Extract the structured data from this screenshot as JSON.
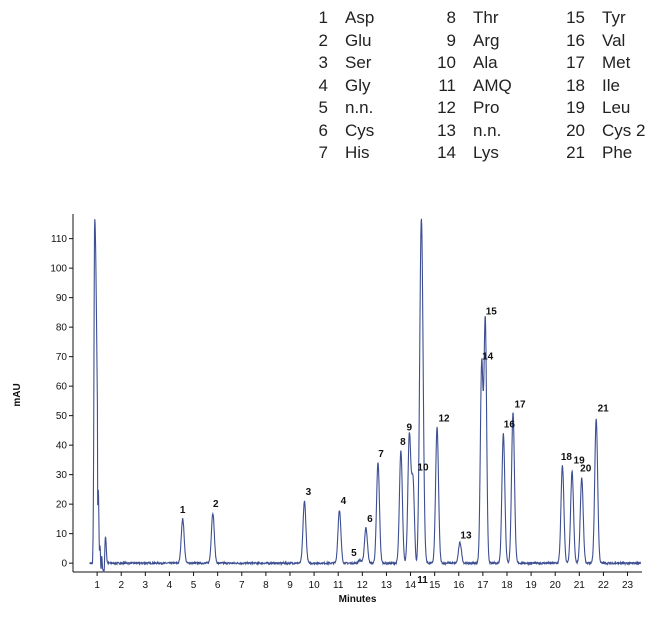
{
  "legend": [
    {
      "num": "1",
      "name": "Asp"
    },
    {
      "num": "2",
      "name": "Glu"
    },
    {
      "num": "3",
      "name": "Ser"
    },
    {
      "num": "4",
      "name": "Gly"
    },
    {
      "num": "5",
      "name": "n.n."
    },
    {
      "num": "6",
      "name": "Cys"
    },
    {
      "num": "7",
      "name": "His"
    },
    {
      "num": "8",
      "name": "Thr"
    },
    {
      "num": "9",
      "name": "Arg"
    },
    {
      "num": "10",
      "name": "Ala"
    },
    {
      "num": "11",
      "name": "AMQ"
    },
    {
      "num": "12",
      "name": "Pro"
    },
    {
      "num": "13",
      "name": "n.n."
    },
    {
      "num": "14",
      "name": "Lys"
    },
    {
      "num": "15",
      "name": "Tyr"
    },
    {
      "num": "16",
      "name": "Val"
    },
    {
      "num": "17",
      "name": "Met"
    },
    {
      "num": "18",
      "name": "Ile"
    },
    {
      "num": "19",
      "name": "Leu"
    },
    {
      "num": "20",
      "name": "Cys 2"
    },
    {
      "num": "21",
      "name": "Phe"
    }
  ],
  "chart_data": {
    "type": "line",
    "xlabel": "Minutes",
    "ylabel": "mAU",
    "xlim": [
      0,
      23.6
    ],
    "ylim": [
      -3,
      117
    ],
    "xticks": [
      "1",
      "2",
      "3",
      "4",
      "5",
      "6",
      "7",
      "8",
      "9",
      "10",
      "11",
      "12",
      "13",
      "14",
      "15",
      "16",
      "17",
      "18",
      "19",
      "20",
      "21",
      "22",
      "23"
    ],
    "yticks": [
      "0",
      "10",
      "20",
      "30",
      "40",
      "50",
      "60",
      "70",
      "80",
      "90",
      "100",
      "110"
    ],
    "grid": false,
    "line_color": "#3d4f91",
    "peaks": [
      {
        "label": "1",
        "x": 4.55,
        "y": 15
      },
      {
        "label": "2",
        "x": 5.8,
        "y": 17
      },
      {
        "label": "3",
        "x": 9.6,
        "y": 21
      },
      {
        "label": "4",
        "x": 11.05,
        "y": 18
      },
      {
        "label": "5",
        "x": 11.9,
        "y": 1
      },
      {
        "label": "6",
        "x": 12.15,
        "y": 12
      },
      {
        "label": "7",
        "x": 12.65,
        "y": 34
      },
      {
        "label": "8",
        "x": 13.6,
        "y": 38
      },
      {
        "label": "9",
        "x": 13.95,
        "y": 43
      },
      {
        "label": "10",
        "x": 14.1,
        "y": 28
      },
      {
        "label": "11",
        "x": 14.25,
        "y": -2
      },
      {
        "label": "AMQ",
        "x": 14.45,
        "y": 117
      },
      {
        "label": "12",
        "x": 15.1,
        "y": 46
      },
      {
        "label": "13",
        "x": 16.05,
        "y": 7
      },
      {
        "label": "14",
        "x": 16.95,
        "y": 67
      },
      {
        "label": "15",
        "x": 17.1,
        "y": 82
      },
      {
        "label": "16",
        "x": 17.85,
        "y": 44
      },
      {
        "label": "17",
        "x": 18.25,
        "y": 51
      },
      {
        "label": "18",
        "x": 20.3,
        "y": 33
      },
      {
        "label": "19",
        "x": 20.7,
        "y": 31
      },
      {
        "label": "20",
        "x": 21.1,
        "y": 29
      },
      {
        "label": "21",
        "x": 21.7,
        "y": 49
      }
    ],
    "solvent_front": {
      "x": 0.9,
      "y": 117
    }
  }
}
